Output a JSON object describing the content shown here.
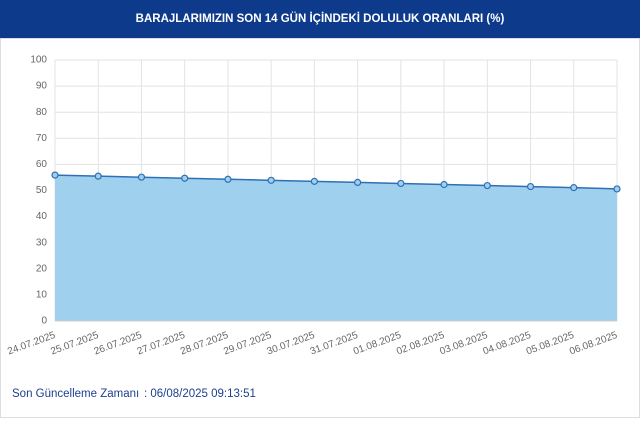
{
  "chart_data": {
    "type": "area",
    "title": "BARAJLARIMIZIN SON 14 GÜN İÇİNDEKİ DOLULUK ORANLARI (%)",
    "x": [
      "24.07.2025",
      "25.07.2025",
      "26.07.2025",
      "27.07.2025",
      "28.07.2025",
      "29.07.2025",
      "30.07.2025",
      "31.07.2025",
      "01.08.2025",
      "02.08.2025",
      "03.08.2025",
      "04.08.2025",
      "05.08.2025",
      "06.08.2025"
    ],
    "values": [
      55.9,
      55.5,
      55.1,
      54.7,
      54.3,
      53.9,
      53.5,
      53.1,
      52.7,
      52.3,
      51.9,
      51.5,
      51.1,
      50.6
    ],
    "color": "#2f6fb3",
    "fill": "#9fd1ef",
    "ylim": [
      0,
      100
    ],
    "yticks": [
      0,
      10,
      20,
      30,
      40,
      50,
      60,
      70,
      80,
      90,
      100
    ],
    "grid": true
  },
  "footer": {
    "label": "Son Güncelleme Zamanı",
    "value": ": 06/08/2025 09:13:51"
  }
}
